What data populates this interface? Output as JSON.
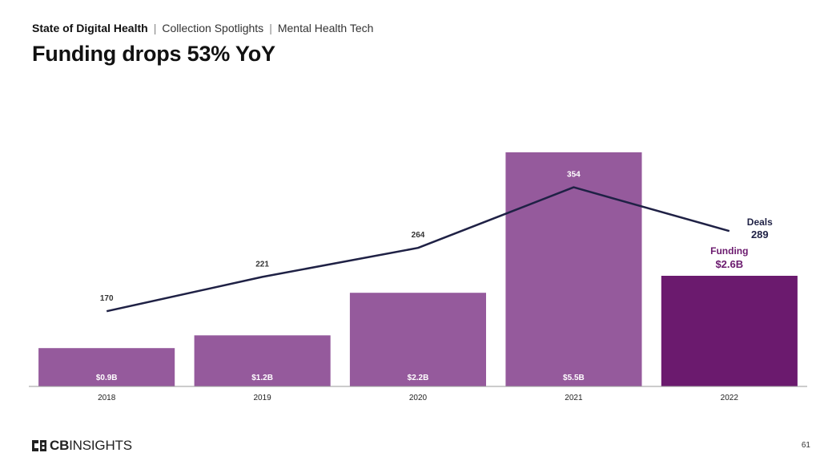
{
  "header": {
    "breadcrumb": [
      "State of Digital Health",
      "Collection Spotlights",
      "Mental Health Tech"
    ],
    "title": "Funding drops 53% YoY"
  },
  "footer": {
    "logo_text_strong": "CB",
    "logo_text": "INSIGHTS",
    "page_number": "61"
  },
  "colors": {
    "bar": "#955a9c",
    "bar_highlight": "#6b1a6e",
    "line": "#1f2145",
    "funding_label": "#6b1a6e",
    "deals_label": "#1f2145"
  },
  "chart_data": {
    "type": "bar",
    "categories": [
      "2018",
      "2019",
      "2020",
      "2021",
      "2022"
    ],
    "series": [
      {
        "type": "bar",
        "values": [
          0.9,
          1.2,
          2.2,
          5.5,
          2.6
        ],
        "labels": [
          "$0.9B",
          "$1.2B",
          "$2.2B",
          "$5.5B",
          ""
        ]
      },
      {
        "type": "line",
        "values": [
          170,
          221,
          264,
          354,
          289
        ],
        "labels": [
          "170",
          "221",
          "264",
          "354",
          ""
        ]
      }
    ],
    "annotations": {
      "funding_label": "Funding",
      "funding_value": "$2.6B",
      "deals_label": "Deals",
      "deals_value": "289"
    },
    "highlight_index": 4,
    "grid": false
  }
}
